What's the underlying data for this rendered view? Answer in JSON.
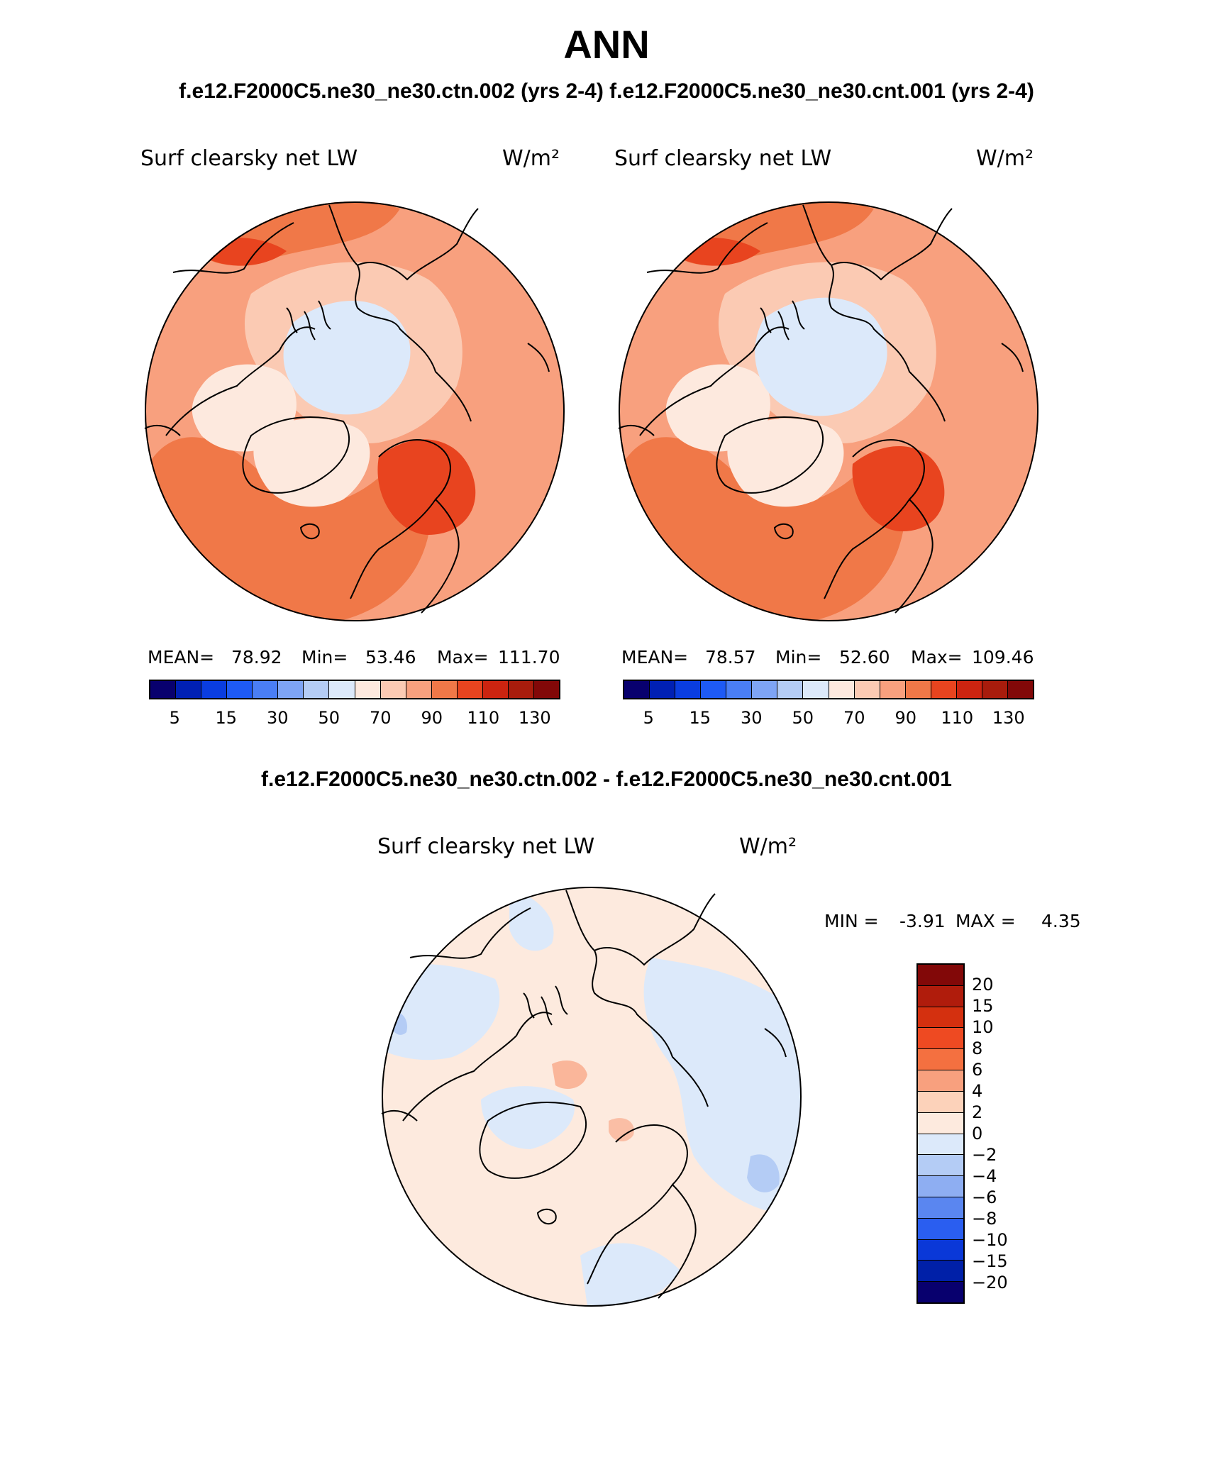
{
  "title": "ANN",
  "subtitle_top": "f.e12.F2000C5.ne30_ne30.ctn.002 (yrs 2-4) f.e12.F2000C5.ne30_ne30.cnt.001 (yrs 2-4)",
  "subtitle_diff": "f.e12.F2000C5.ne30_ne30.ctn.002 - f.e12.F2000C5.ne30_ne30.cnt.001",
  "colors": {
    "abs_scale": [
      "#08006e",
      "#0020b4",
      "#0a3de0",
      "#1e5af5",
      "#4a7ef5",
      "#7ea4f5",
      "#b4ccf5",
      "#dce9fa",
      "#fde9de",
      "#fbcab3",
      "#f8a07e",
      "#f07848",
      "#e8441f",
      "#cc2410",
      "#a81c0c",
      "#820808"
    ],
    "diff_scale": [
      "#820808",
      "#b01c0c",
      "#d4300f",
      "#ee4a22",
      "#f47040",
      "#f8a07e",
      "#fcd2ba",
      "#fdeade",
      "#dce9fa",
      "#b4ccf5",
      "#8eaef2",
      "#5a86f0",
      "#2a5ef0",
      "#0a38d8",
      "#0020a8",
      "#08006e"
    ],
    "coast": "#000000",
    "border": "#000000"
  },
  "panels": {
    "ctn": {
      "label": "Surf clearsky net LW",
      "units": "W/m²",
      "mean_label": "MEAN=",
      "mean": "78.92",
      "min_label": "Min=",
      "min": "53.46",
      "max_label": "Max=",
      "max": "111.70",
      "ticks": [
        "5",
        "15",
        "30",
        "50",
        "70",
        "90",
        "110",
        "130"
      ]
    },
    "cnt": {
      "label": "Surf clearsky net LW",
      "units": "W/m²",
      "mean_label": "MEAN=",
      "mean": "78.57",
      "min_label": "Min=",
      "min": "52.60",
      "max_label": "Max=",
      "max": "109.46",
      "ticks": [
        "5",
        "15",
        "30",
        "50",
        "70",
        "90",
        "110",
        "130"
      ]
    },
    "diff": {
      "label": "Surf clearsky net LW",
      "units": "W/m²",
      "min_label": "MIN =",
      "min": "-3.91",
      "max_label": "MAX =",
      "max": "4.35",
      "ticks": [
        "20",
        "15",
        "10",
        "8",
        "6",
        "4",
        "2",
        "0",
        "−2",
        "−4",
        "−6",
        "−8",
        "−10",
        "−15",
        "−20"
      ]
    }
  }
}
